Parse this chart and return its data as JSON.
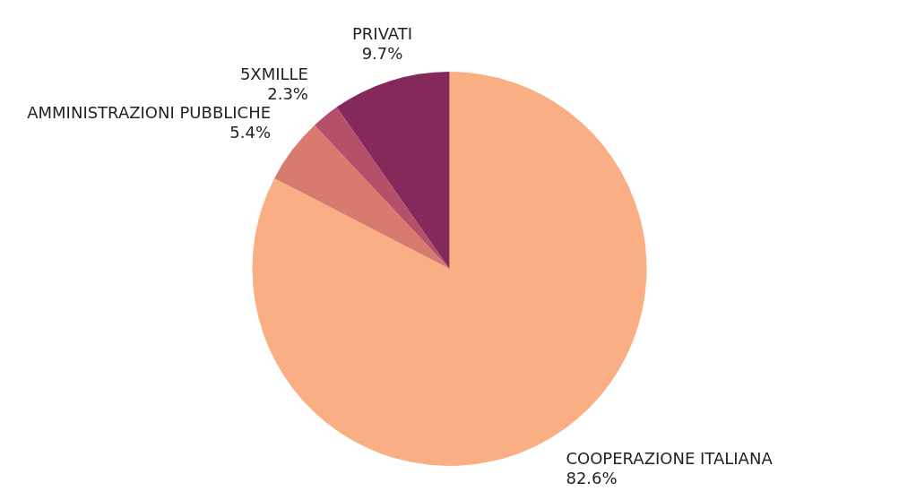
{
  "chart_data": {
    "type": "pie",
    "categories": [
      "COOPERAZIONE ITALIANA",
      "AMMINISTRAZIONI PUBBLICHE",
      "5XMILLE",
      "PRIVATI"
    ],
    "values": [
      82.6,
      5.4,
      2.3,
      9.7
    ],
    "colors": [
      "#f9ae83",
      "#d97a6e",
      "#b5506a",
      "#85295b"
    ],
    "value_labels": [
      "82.6%",
      "5.4%",
      "2.3%",
      "9.7%"
    ],
    "legend": false
  }
}
